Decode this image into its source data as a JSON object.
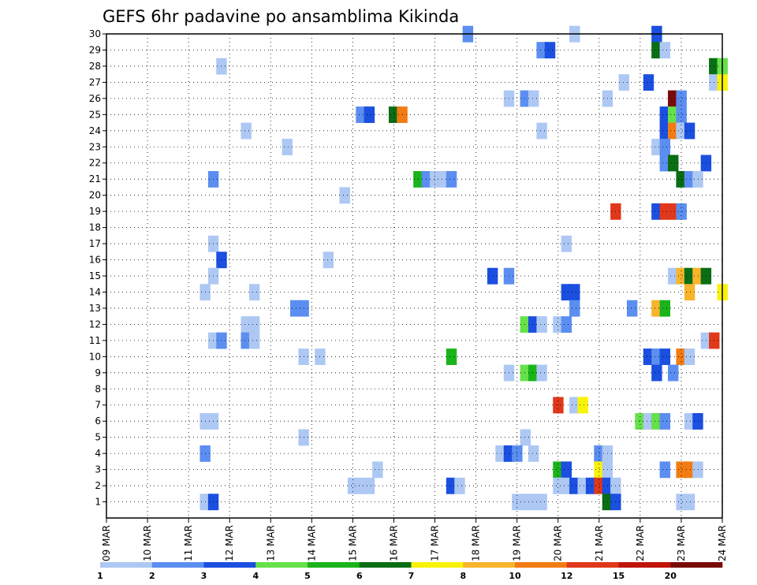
{
  "chart_data": {
    "type": "heatmap",
    "title": "GEFS 6hr padavine po ansamblima Kikinda",
    "xlabel": "",
    "ylabel": "",
    "x_tick_labels": [
      "09 MAR",
      "10 MAR",
      "11 MAR",
      "12 MAR",
      "13 MAR",
      "14 MAR",
      "15 MAR",
      "16 MAR",
      "17 MAR",
      "18 MAR",
      "19 MAR",
      "20 MAR",
      "21 MAR",
      "22 MAR",
      "23 MAR",
      "24 MAR"
    ],
    "y_tick_labels": [
      "1",
      "2",
      "3",
      "4",
      "5",
      "6",
      "7",
      "8",
      "9",
      "10",
      "11",
      "12",
      "13",
      "14",
      "15",
      "16",
      "17",
      "18",
      "19",
      "20",
      "21",
      "22",
      "23",
      "24",
      "25",
      "26",
      "27",
      "28",
      "29",
      "30"
    ],
    "xlim_days": [
      0,
      15
    ],
    "ylim": [
      0,
      30
    ],
    "grid": true,
    "colorbar": {
      "levels": [
        1,
        2,
        3,
        4,
        5,
        6,
        7,
        8,
        10,
        12,
        15,
        20
      ],
      "colors": [
        "#aec8f4",
        "#5b8ef0",
        "#1a4fe0",
        "#66e14a",
        "#1ab41a",
        "#0a6e14",
        "#f9f20a",
        "#f7b42c",
        "#f27c14",
        "#e0381a",
        "#c0140a",
        "#7a0a0a"
      ]
    },
    "cells": [
      [
        11.4,
        30,
        "#aec8f4"
      ],
      [
        13.4,
        30,
        "#1a4fe0"
      ],
      [
        8.8,
        30,
        "#5b8ef0"
      ],
      [
        13.4,
        29,
        "#0a6e14"
      ],
      [
        13.6,
        29,
        "#aec8f4"
      ],
      [
        10.6,
        29,
        "#5b8ef0"
      ],
      [
        10.8,
        29,
        "#1a4fe0"
      ],
      [
        2.8,
        28,
        "#aec8f4"
      ],
      [
        14.8,
        28,
        "#0a6e14"
      ],
      [
        15.0,
        28,
        "#66e14a"
      ],
      [
        12.6,
        27,
        "#aec8f4"
      ],
      [
        13.2,
        27,
        "#1a4fe0"
      ],
      [
        14.8,
        27,
        "#aec8f4"
      ],
      [
        15.0,
        27,
        "#f9f20a"
      ],
      [
        9.8,
        26,
        "#aec8f4"
      ],
      [
        10.2,
        26,
        "#5b8ef0"
      ],
      [
        10.4,
        26,
        "#aec8f4"
      ],
      [
        12.2,
        26,
        "#aec8f4"
      ],
      [
        13.8,
        26,
        "#7a0a0a"
      ],
      [
        14.0,
        26,
        "#5b8ef0"
      ],
      [
        6.2,
        25,
        "#5b8ef0"
      ],
      [
        6.4,
        25,
        "#1a4fe0"
      ],
      [
        7.0,
        25,
        "#0a6e14"
      ],
      [
        7.2,
        25,
        "#f27c14"
      ],
      [
        13.6,
        25,
        "#1a4fe0"
      ],
      [
        13.8,
        25,
        "#66e14a"
      ],
      [
        14.0,
        25,
        "#5b8ef0"
      ],
      [
        3.4,
        24,
        "#aec8f4"
      ],
      [
        10.6,
        24,
        "#aec8f4"
      ],
      [
        13.6,
        24,
        "#1a4fe0"
      ],
      [
        13.8,
        24,
        "#f27c14"
      ],
      [
        14.0,
        24,
        "#aec8f4"
      ],
      [
        14.2,
        24,
        "#1a4fe0"
      ],
      [
        4.4,
        23,
        "#aec8f4"
      ],
      [
        13.4,
        23,
        "#aec8f4"
      ],
      [
        13.6,
        23,
        "#5b8ef0"
      ],
      [
        13.6,
        22,
        "#5b8ef0"
      ],
      [
        13.8,
        22,
        "#0a6e14"
      ],
      [
        14.6,
        22,
        "#1a4fe0"
      ],
      [
        2.6,
        21,
        "#5b8ef0"
      ],
      [
        7.6,
        21,
        "#1ab41a"
      ],
      [
        7.8,
        21,
        "#5b8ef0"
      ],
      [
        8.0,
        21,
        "#aec8f4"
      ],
      [
        8.2,
        21,
        "#aec8f4"
      ],
      [
        8.4,
        21,
        "#5b8ef0"
      ],
      [
        14.0,
        21,
        "#0a6e14"
      ],
      [
        14.2,
        21,
        "#5b8ef0"
      ],
      [
        14.4,
        21,
        "#aec8f4"
      ],
      [
        5.8,
        20,
        "#aec8f4"
      ],
      [
        12.4,
        19,
        "#e0381a"
      ],
      [
        13.4,
        19,
        "#1a4fe0"
      ],
      [
        13.6,
        19,
        "#e0381a"
      ],
      [
        13.8,
        19,
        "#e0381a"
      ],
      [
        14.0,
        19,
        "#5b8ef0"
      ],
      [
        2.6,
        17,
        "#aec8f4"
      ],
      [
        11.2,
        17,
        "#aec8f4"
      ],
      [
        2.8,
        16,
        "#1a4fe0"
      ],
      [
        5.4,
        16,
        "#aec8f4"
      ],
      [
        2.6,
        15,
        "#aec8f4"
      ],
      [
        9.4,
        15,
        "#1a4fe0"
      ],
      [
        9.8,
        15,
        "#5b8ef0"
      ],
      [
        13.8,
        15,
        "#aec8f4"
      ],
      [
        14.0,
        15,
        "#f7b42c"
      ],
      [
        14.2,
        15,
        "#0a6e14"
      ],
      [
        14.4,
        15,
        "#f7b42c"
      ],
      [
        14.6,
        15,
        "#0a6e14"
      ],
      [
        2.4,
        14,
        "#aec8f4"
      ],
      [
        3.6,
        14,
        "#aec8f4"
      ],
      [
        11.2,
        14,
        "#1a4fe0"
      ],
      [
        11.4,
        14,
        "#1a4fe0"
      ],
      [
        14.2,
        14,
        "#f7b42c"
      ],
      [
        15.0,
        14,
        "#f9f20a"
      ],
      [
        4.6,
        13,
        "#5b8ef0"
      ],
      [
        4.8,
        13,
        "#5b8ef0"
      ],
      [
        11.4,
        13,
        "#5b8ef0"
      ],
      [
        12.8,
        13,
        "#5b8ef0"
      ],
      [
        13.4,
        13,
        "#f7b42c"
      ],
      [
        13.6,
        13,
        "#1ab41a"
      ],
      [
        3.4,
        12,
        "#aec8f4"
      ],
      [
        3.6,
        12,
        "#aec8f4"
      ],
      [
        10.2,
        12,
        "#66e14a"
      ],
      [
        10.4,
        12,
        "#1a4fe0"
      ],
      [
        10.6,
        12,
        "#aec8f4"
      ],
      [
        11.0,
        12,
        "#aec8f4"
      ],
      [
        11.2,
        12,
        "#5b8ef0"
      ],
      [
        2.6,
        11,
        "#aec8f4"
      ],
      [
        2.8,
        11,
        "#5b8ef0"
      ],
      [
        3.4,
        11,
        "#5b8ef0"
      ],
      [
        3.6,
        11,
        "#aec8f4"
      ],
      [
        14.6,
        11,
        "#aec8f4"
      ],
      [
        14.8,
        11,
        "#e0381a"
      ],
      [
        4.8,
        10,
        "#aec8f4"
      ],
      [
        5.2,
        10,
        "#aec8f4"
      ],
      [
        8.4,
        10,
        "#1ab41a"
      ],
      [
        13.2,
        10,
        "#1a4fe0"
      ],
      [
        13.4,
        10,
        "#5b8ef0"
      ],
      [
        13.6,
        10,
        "#1a4fe0"
      ],
      [
        14.0,
        10,
        "#f27c14"
      ],
      [
        14.2,
        10,
        "#aec8f4"
      ],
      [
        9.8,
        9,
        "#aec8f4"
      ],
      [
        10.2,
        9,
        "#66e14a"
      ],
      [
        10.4,
        9,
        "#1ab41a"
      ],
      [
        10.6,
        9,
        "#aec8f4"
      ],
      [
        13.4,
        9,
        "#1a4fe0"
      ],
      [
        13.8,
        9,
        "#5b8ef0"
      ],
      [
        11.0,
        7,
        "#e0381a"
      ],
      [
        11.4,
        7,
        "#aec8f4"
      ],
      [
        11.6,
        7,
        "#f9f20a"
      ],
      [
        2.4,
        6,
        "#aec8f4"
      ],
      [
        2.6,
        6,
        "#aec8f4"
      ],
      [
        13.0,
        6,
        "#66e14a"
      ],
      [
        13.2,
        6,
        "#aec8f4"
      ],
      [
        13.4,
        6,
        "#66e14a"
      ],
      [
        13.6,
        6,
        "#5b8ef0"
      ],
      [
        14.2,
        6,
        "#aec8f4"
      ],
      [
        14.4,
        6,
        "#1a4fe0"
      ],
      [
        4.8,
        5,
        "#aec8f4"
      ],
      [
        10.2,
        5,
        "#aec8f4"
      ],
      [
        2.4,
        4,
        "#5b8ef0"
      ],
      [
        9.6,
        4,
        "#aec8f4"
      ],
      [
        9.8,
        4,
        "#1a4fe0"
      ],
      [
        10.0,
        4,
        "#5b8ef0"
      ],
      [
        10.4,
        4,
        "#aec8f4"
      ],
      [
        12.0,
        4,
        "#5b8ef0"
      ],
      [
        12.2,
        4,
        "#aec8f4"
      ],
      [
        6.6,
        3,
        "#aec8f4"
      ],
      [
        11.0,
        3,
        "#1ab41a"
      ],
      [
        11.2,
        3,
        "#1a4fe0"
      ],
      [
        12.0,
        3,
        "#f9f20a"
      ],
      [
        12.2,
        3,
        "#aec8f4"
      ],
      [
        13.6,
        3,
        "#5b8ef0"
      ],
      [
        14.0,
        3,
        "#f27c14"
      ],
      [
        14.2,
        3,
        "#f27c14"
      ],
      [
        14.4,
        3,
        "#aec8f4"
      ],
      [
        6.0,
        2,
        "#aec8f4"
      ],
      [
        6.2,
        2,
        "#aec8f4"
      ],
      [
        6.4,
        2,
        "#aec8f4"
      ],
      [
        8.4,
        2,
        "#1a4fe0"
      ],
      [
        8.6,
        2,
        "#aec8f4"
      ],
      [
        11.0,
        2,
        "#aec8f4"
      ],
      [
        11.2,
        2,
        "#aec8f4"
      ],
      [
        11.4,
        2,
        "#1a4fe0"
      ],
      [
        11.6,
        2,
        "#aec8f4"
      ],
      [
        11.8,
        2,
        "#1a4fe0"
      ],
      [
        12.0,
        2,
        "#e0381a"
      ],
      [
        12.2,
        2,
        "#1a4fe0"
      ],
      [
        12.4,
        2,
        "#aec8f4"
      ],
      [
        2.4,
        1,
        "#aec8f4"
      ],
      [
        2.6,
        1,
        "#1a4fe0"
      ],
      [
        10.0,
        1,
        "#aec8f4"
      ],
      [
        10.2,
        1,
        "#aec8f4"
      ],
      [
        10.4,
        1,
        "#aec8f4"
      ],
      [
        10.6,
        1,
        "#aec8f4"
      ],
      [
        12.2,
        1,
        "#0a6e14"
      ],
      [
        12.4,
        1,
        "#1a4fe0"
      ],
      [
        14.0,
        1,
        "#aec8f4"
      ],
      [
        14.2,
        1,
        "#aec8f4"
      ]
    ]
  }
}
